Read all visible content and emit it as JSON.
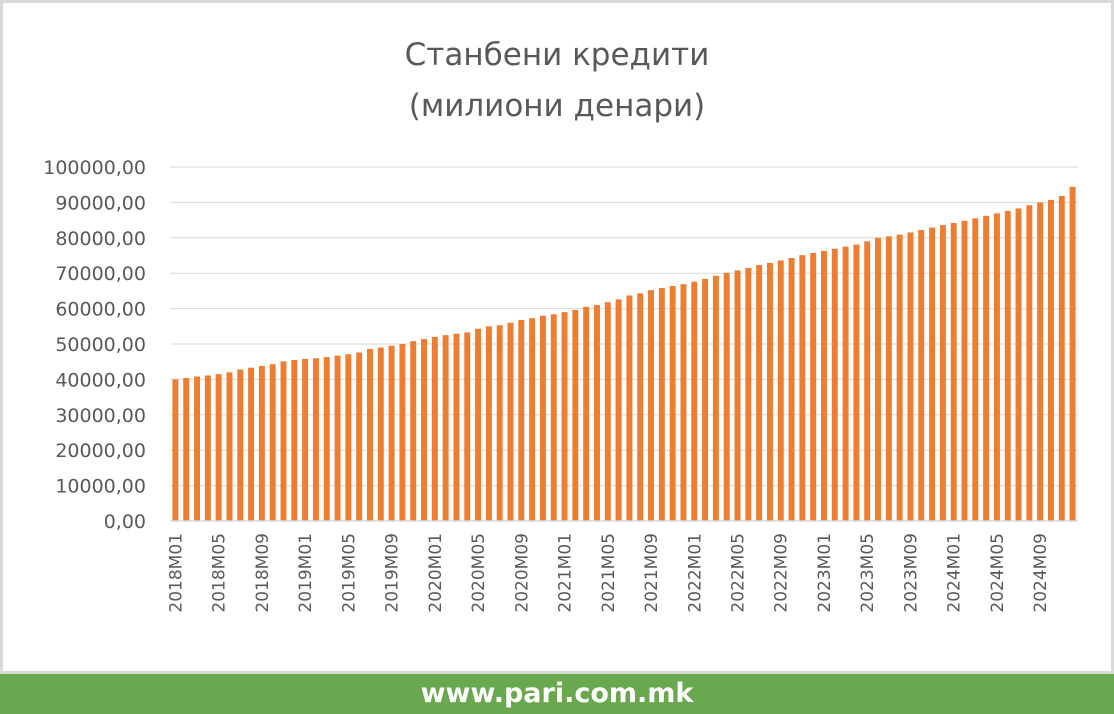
{
  "footer": {
    "url": "www.pari.com.mk"
  },
  "colors": {
    "bar": "#ed7d31",
    "grid": "#d9d9d9",
    "footer_bg": "#6aa84f",
    "text": "#595959"
  },
  "chart_data": {
    "type": "bar",
    "title": "Станбени кредити",
    "subtitle": "(милиони денари)",
    "xlabel": "",
    "ylabel": "",
    "ylim": [
      0,
      100000
    ],
    "grid": true,
    "y_ticks": [
      "0,00",
      "10000,00",
      "20000,00",
      "30000,00",
      "40000,00",
      "50000,00",
      "60000,00",
      "70000,00",
      "80000,00",
      "90000,00",
      "100000,00"
    ],
    "x_tick_labels": [
      "2018M01",
      "2018M05",
      "2018M09",
      "2019M01",
      "2019M05",
      "2019M09",
      "2020M01",
      "2020M05",
      "2020M09",
      "2021M01",
      "2021M05",
      "2021M09",
      "2022M01",
      "2022M05",
      "2022M09",
      "2023M01",
      "2023M05",
      "2023M09",
      "2024M01",
      "2024M05",
      "2024M09"
    ],
    "categories": [
      "2018M01",
      "2018M02",
      "2018M03",
      "2018M04",
      "2018M05",
      "2018M06",
      "2018M07",
      "2018M08",
      "2018M09",
      "2018M10",
      "2018M11",
      "2018M12",
      "2019M01",
      "2019M02",
      "2019M03",
      "2019M04",
      "2019M05",
      "2019M06",
      "2019M07",
      "2019M08",
      "2019M09",
      "2019M10",
      "2019M11",
      "2019M12",
      "2020M01",
      "2020M02",
      "2020M03",
      "2020M04",
      "2020M05",
      "2020M06",
      "2020M07",
      "2020M08",
      "2020M09",
      "2020M10",
      "2020M11",
      "2020M12",
      "2021M01",
      "2021M02",
      "2021M03",
      "2021M04",
      "2021M05",
      "2021M06",
      "2021M07",
      "2021M08",
      "2021M09",
      "2021M10",
      "2021M11",
      "2021M12",
      "2022M01",
      "2022M02",
      "2022M03",
      "2022M04",
      "2022M05",
      "2022M06",
      "2022M07",
      "2022M08",
      "2022M09",
      "2022M10",
      "2022M11",
      "2022M12",
      "2023M01",
      "2023M02",
      "2023M03",
      "2023M04",
      "2023M05",
      "2023M06",
      "2023M07",
      "2023M08",
      "2023M09",
      "2023M10",
      "2023M11",
      "2023M12",
      "2024M01",
      "2024M02",
      "2024M03",
      "2024M04",
      "2024M05",
      "2024M06",
      "2024M07",
      "2024M08",
      "2024M09",
      "2024M10",
      "2024M11",
      "2024M12"
    ],
    "values": [
      40000,
      40400,
      40800,
      41100,
      41500,
      42000,
      42800,
      43300,
      43800,
      44300,
      45100,
      45500,
      45800,
      46000,
      46300,
      46700,
      47100,
      47600,
      48600,
      49000,
      49500,
      50000,
      50800,
      51400,
      52000,
      52500,
      52900,
      53300,
      54300,
      55000,
      55300,
      56000,
      56800,
      57300,
      58000,
      58400,
      59000,
      59600,
      60500,
      61000,
      61800,
      62600,
      63700,
      64300,
      65200,
      65800,
      66400,
      66900,
      67600,
      68400,
      69300,
      70100,
      70800,
      71500,
      72300,
      72900,
      73600,
      74300,
      75100,
      75700,
      76300,
      76900,
      77500,
      78100,
      79000,
      80000,
      80400,
      80900,
      81500,
      82200,
      82900,
      83600,
      84200,
      84800,
      85500,
      86200,
      86900,
      87600,
      88300,
      89200,
      90000,
      90700,
      91800,
      94400
    ]
  }
}
